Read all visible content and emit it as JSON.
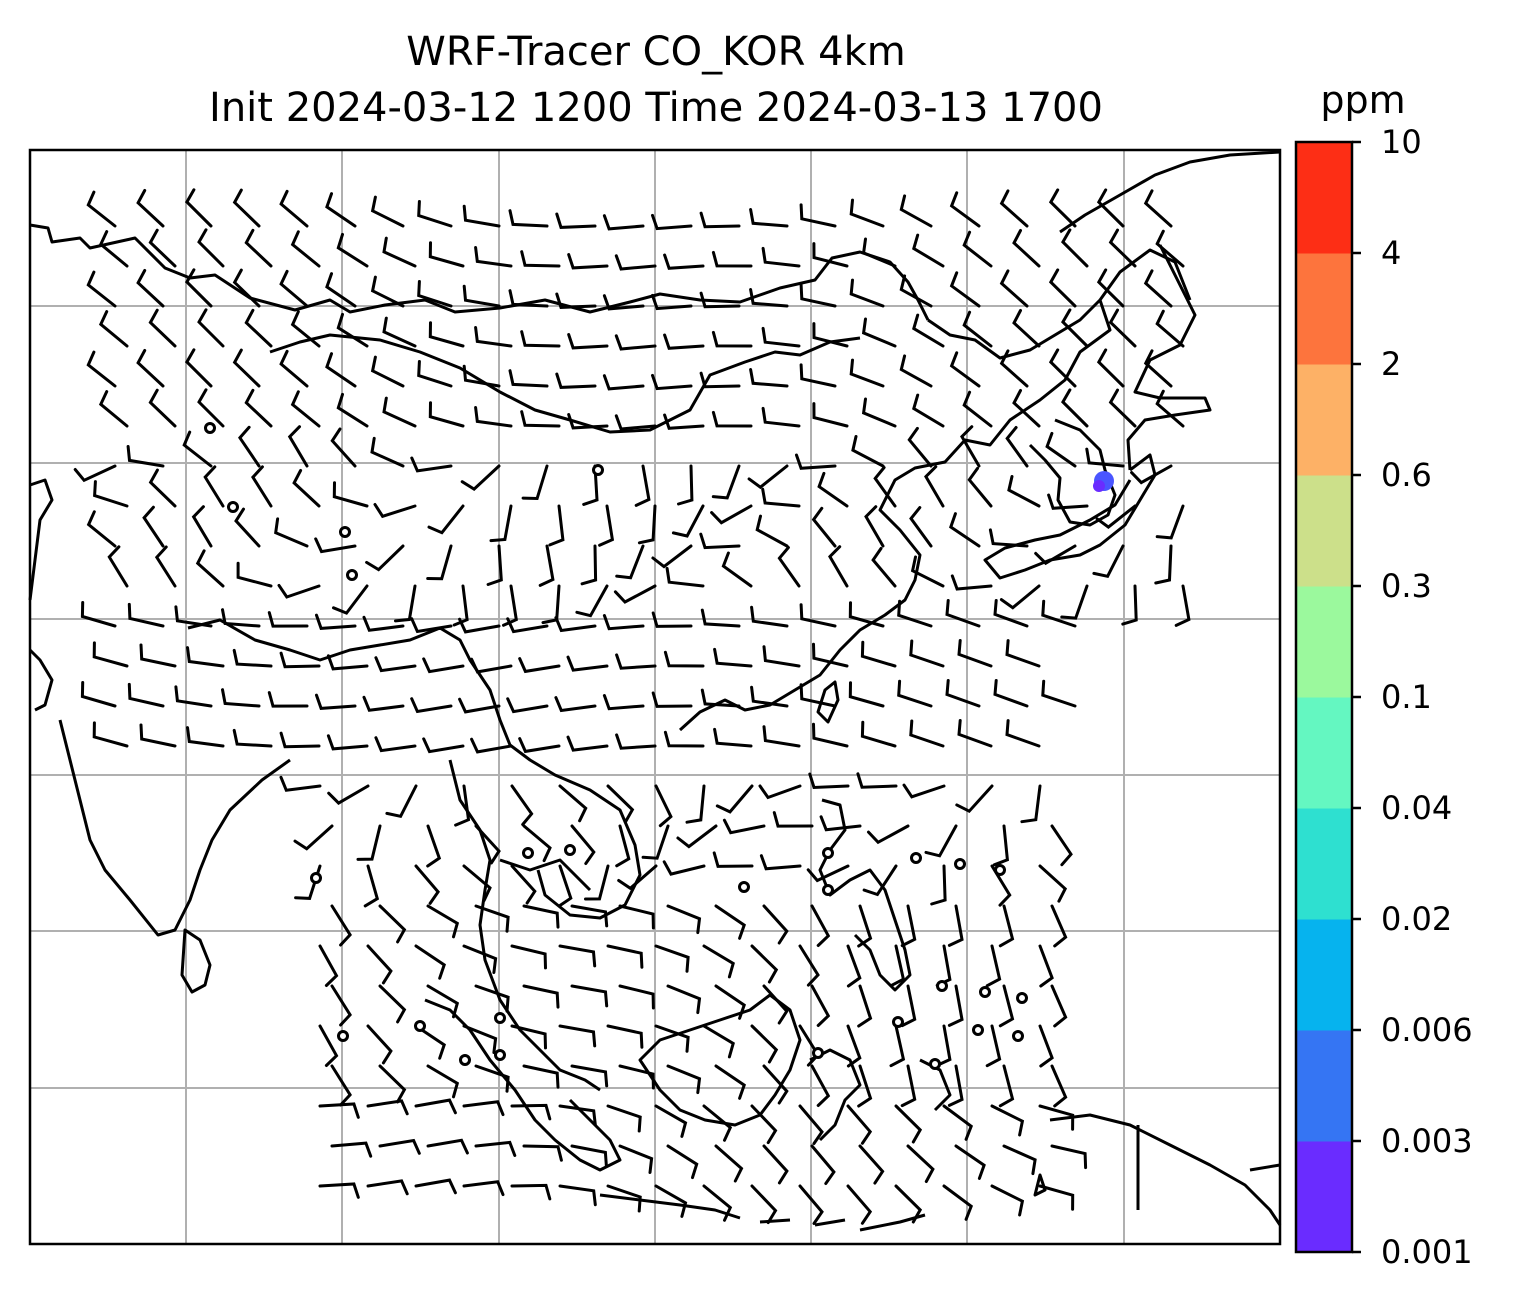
{
  "title": {
    "line1": "WRF-Tracer CO_KOR 4km",
    "line2": "Init 2024-03-12 1200 Time 2024-03-13 1700"
  },
  "colorbar": {
    "unit": "ppm",
    "levels": [
      "0.001",
      "0.003",
      "0.006",
      "0.02",
      "0.04",
      "0.1",
      "0.3",
      "0.6",
      "2",
      "4",
      "10"
    ],
    "colors": [
      "#6a2cff",
      "#3575f3",
      "#06b3ee",
      "#2ee0d0",
      "#64f7c1",
      "#9bf99d",
      "#cce08a",
      "#fdb166",
      "#fd743d",
      "#fd2e15"
    ]
  },
  "map": {
    "coastline_color": "#000000",
    "grid_color": "#b0b0b0",
    "tracer_plume_color": "#4a55ff",
    "tracer_plume_location": "Korea",
    "wind_field": "wind barbs"
  }
}
